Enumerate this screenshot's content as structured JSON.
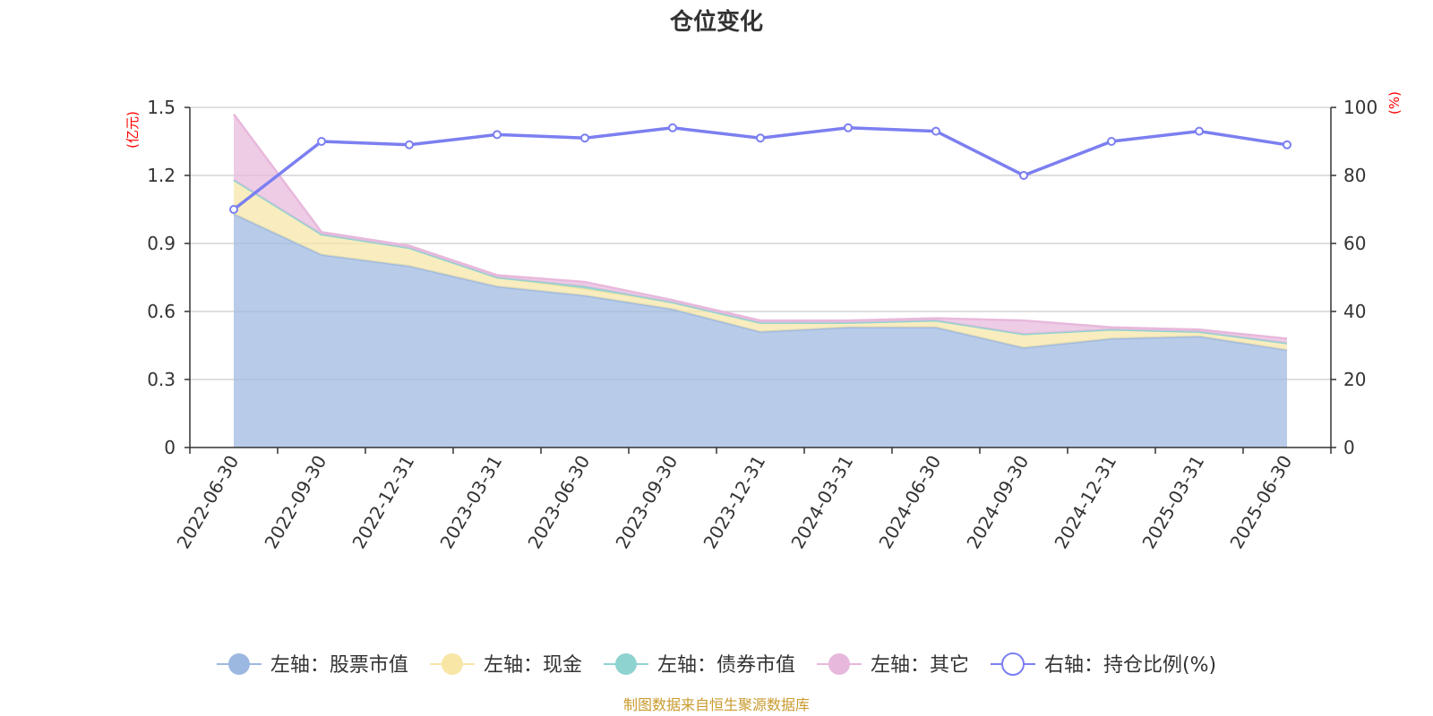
{
  "chart_data": {
    "type": "area",
    "title": "仓位变化",
    "categories": [
      "2022-06-30",
      "2022-09-30",
      "2022-12-31",
      "2023-03-31",
      "2023-06-30",
      "2023-09-30",
      "2023-12-31",
      "2024-03-31",
      "2024-06-30",
      "2024-09-30",
      "2024-12-31",
      "2025-03-31",
      "2025-06-30"
    ],
    "left_axis": {
      "unit": "(亿元)",
      "ylim": [
        0,
        1.5
      ],
      "ticks": [
        "0",
        "0.3",
        "0.6",
        "0.9",
        "1.2",
        "1.5"
      ]
    },
    "right_axis": {
      "unit": "(%)",
      "ylim": [
        0,
        100
      ],
      "ticks": [
        "0",
        "20",
        "40",
        "60",
        "80",
        "100"
      ]
    },
    "grid": true,
    "legend_position": "bottom",
    "series": [
      {
        "name": "左轴：股票市值",
        "axis": "left",
        "stacked": true,
        "color": "#9db8e0",
        "values": [
          1.03,
          0.85,
          0.8,
          0.71,
          0.67,
          0.61,
          0.51,
          0.53,
          0.53,
          0.44,
          0.48,
          0.49,
          0.43
        ]
      },
      {
        "name": "左轴：现金",
        "axis": "left",
        "stacked": true,
        "color": "#f7e6a6",
        "values": [
          0.15,
          0.09,
          0.08,
          0.04,
          0.03,
          0.03,
          0.04,
          0.02,
          0.03,
          0.06,
          0.04,
          0.02,
          0.03
        ]
      },
      {
        "name": "左轴：债券市值",
        "axis": "left",
        "stacked": true,
        "color": "#8fd3d1",
        "values": [
          0,
          0,
          0,
          0,
          0.01,
          0,
          0,
          0,
          0,
          0,
          0,
          0,
          0
        ]
      },
      {
        "name": "左轴：其它",
        "axis": "left",
        "stacked": true,
        "color": "#e8b8dc",
        "values": [
          0.29,
          0.01,
          0.01,
          0.01,
          0.02,
          0.01,
          0.01,
          0.01,
          0.01,
          0.06,
          0.01,
          0.01,
          0.02
        ]
      },
      {
        "name": "右轴：持仓比例(%)",
        "axis": "right",
        "stacked": false,
        "color": "#7b7ff0",
        "values": [
          70,
          90,
          89,
          92,
          91,
          94,
          91,
          94,
          93,
          80,
          90,
          93,
          89
        ]
      }
    ]
  },
  "footer": {
    "source": "制图数据来自恒生聚源数据库"
  }
}
